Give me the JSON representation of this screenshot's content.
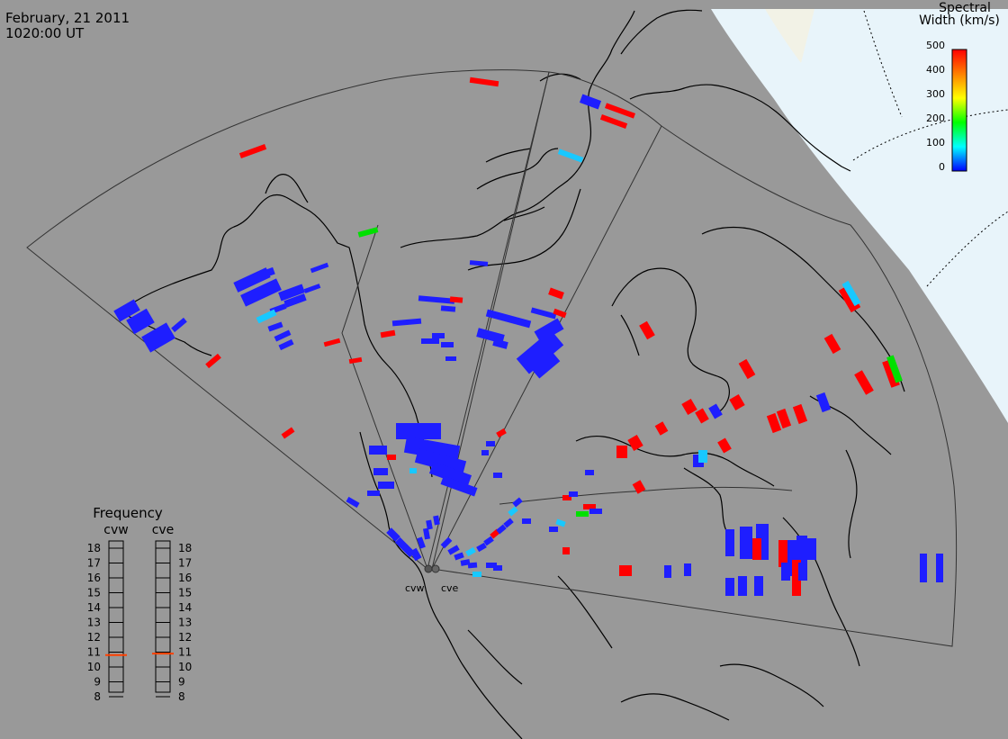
{
  "header": {
    "date": "February, 21 2011",
    "time": "1020:00 UT"
  },
  "colorbar": {
    "title_line1": "Spectral",
    "title_line2": "Width (km/s)",
    "ticks": [
      "500",
      "400",
      "300",
      "200",
      "100",
      "0"
    ],
    "stops": [
      "#0000ff",
      "#00ffff",
      "#00ff00",
      "#ffff00",
      "#ff8000",
      "#ff0000"
    ]
  },
  "frequency_panel": {
    "title": "Frequency",
    "radars": [
      {
        "code": "cvw",
        "value": 10.8
      },
      {
        "code": "cve",
        "value": 10.9
      }
    ],
    "ticks": [
      "18",
      "17",
      "16",
      "15",
      "14",
      "13",
      "12",
      "11",
      "10",
      "9",
      "8"
    ]
  },
  "radar_sites": [
    {
      "code": "cvw"
    },
    {
      "code": "cve"
    }
  ],
  "colors": {
    "background": "#999999",
    "sunlit_cap": "#e8f4fa",
    "coast": "#000000",
    "low_width": "#1e1eff",
    "mid_width": "#18c8ff",
    "green_width": "#00e000",
    "high_width": "#ff0000"
  }
}
